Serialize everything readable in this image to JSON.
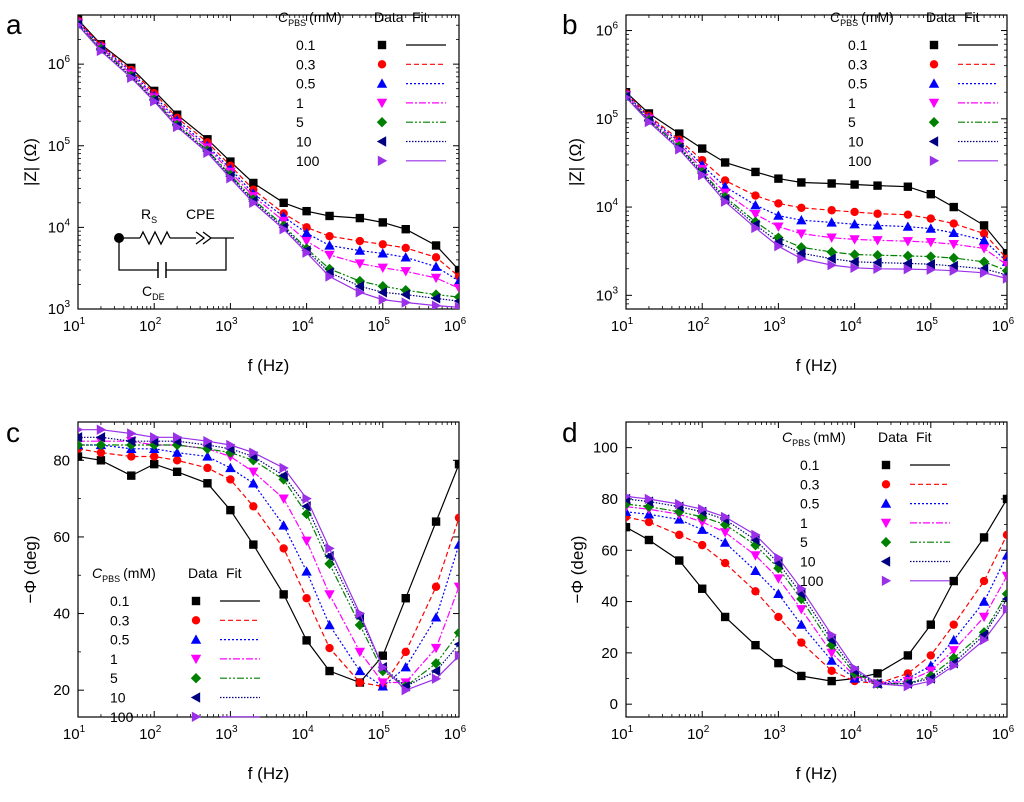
{
  "figure": {
    "legend": {
      "header_var": "C",
      "header_sub": "PBS",
      "header_unit": "(mM)",
      "data_label": "Data",
      "fit_label": "Fit"
    },
    "series_styles": [
      {
        "label": "0.1",
        "color": "#000000",
        "marker": "square",
        "dash": ""
      },
      {
        "label": "0.3",
        "color": "#ff0000",
        "marker": "circle",
        "dash": "5,3"
      },
      {
        "label": "0.5",
        "color": "#0000ff",
        "marker": "triangle-up",
        "dash": "2,2"
      },
      {
        "label": "1",
        "color": "#ff00ff",
        "marker": "triangle-down",
        "dash": "7,2,2,2"
      },
      {
        "label": "5",
        "color": "#008000",
        "marker": "diamond",
        "dash": "7,2,2,2,2,2"
      },
      {
        "label": "10",
        "color": "#000080",
        "marker": "triangle-left",
        "dash": "1.5,1.5"
      },
      {
        "label": "100",
        "color": "#9a30e8",
        "marker": "triangle-right",
        "dash": ""
      }
    ],
    "circuit": {
      "rs_main": "R",
      "rs_sub": "S",
      "cpe": "CPE",
      "cde_main": "C",
      "cde_sub": "DE"
    }
  },
  "chart_data": [
    {
      "panel": "a",
      "type": "scatter",
      "xlabel": "f (Hz)",
      "ylabel": "|Z| (Ω)",
      "xscale": "log",
      "yscale": "log",
      "xlim": [
        10,
        1000000
      ],
      "ylim": [
        1000,
        4000000
      ],
      "x_ticks": [
        1,
        2,
        3,
        4,
        5,
        6
      ],
      "y_ticks": [
        3,
        4,
        5,
        6
      ],
      "legend_position": "top-right",
      "frequencies_hz": [
        10,
        20,
        50,
        100,
        200,
        500,
        1000,
        2000,
        5000,
        10000,
        20000,
        50000,
        100000,
        200000,
        500000,
        1000000
      ],
      "series": [
        {
          "name": "0.1",
          "values": [
            3500000,
            1750000,
            900000,
            470000,
            240000,
            120000,
            64000,
            35000,
            20000,
            15800,
            13800,
            13000,
            11500,
            9500,
            6000,
            3000
          ]
        },
        {
          "name": "0.3",
          "values": [
            3400000,
            1700000,
            850000,
            440000,
            220000,
            110000,
            57000,
            29000,
            14800,
            10000,
            7800,
            6800,
            6200,
            5600,
            4300,
            2500
          ]
        },
        {
          "name": "0.5",
          "values": [
            3300000,
            1650000,
            800000,
            410000,
            205000,
            100000,
            52000,
            26000,
            13500,
            8500,
            6000,
            5200,
            4800,
            4300,
            3300,
            2200
          ]
        },
        {
          "name": "1",
          "values": [
            3200000,
            1600000,
            760000,
            390000,
            190000,
            95000,
            48000,
            24000,
            12000,
            6800,
            4600,
            3600,
            3200,
            2900,
            2400,
            1800
          ]
        },
        {
          "name": "5",
          "values": [
            3100000,
            1550000,
            720000,
            370000,
            180000,
            88000,
            44000,
            22000,
            10500,
            5500,
            3100,
            2200,
            1900,
            1700,
            1500,
            1400
          ]
        },
        {
          "name": "10",
          "values": [
            3050000,
            1500000,
            700000,
            360000,
            175000,
            85000,
            42000,
            21000,
            10000,
            5200,
            2800,
            1900,
            1600,
            1500,
            1350,
            1250
          ]
        },
        {
          "name": "100",
          "values": [
            3000000,
            1450000,
            680000,
            350000,
            170000,
            82000,
            40000,
            20000,
            9500,
            4900,
            2500,
            1600,
            1300,
            1200,
            1100,
            1050
          ]
        }
      ]
    },
    {
      "panel": "b",
      "type": "scatter",
      "xlabel": "f (Hz)",
      "ylabel": "|Z| (Ω)",
      "xscale": "log",
      "yscale": "log",
      "xlim": [
        10,
        1000000
      ],
      "ylim": [
        700,
        1500000
      ],
      "x_ticks": [
        1,
        2,
        3,
        4,
        5,
        6
      ],
      "y_ticks": [
        3,
        4,
        5,
        6
      ],
      "legend_position": "top-right",
      "frequencies_hz": [
        10,
        20,
        50,
        100,
        200,
        500,
        1000,
        2000,
        5000,
        10000,
        20000,
        50000,
        100000,
        200000,
        500000,
        1000000
      ],
      "series": [
        {
          "name": "0.1",
          "values": [
            200000,
            115000,
            68000,
            46000,
            32000,
            25000,
            21000,
            19000,
            18500,
            18000,
            17500,
            17000,
            14000,
            10000,
            6200,
            3000
          ]
        },
        {
          "name": "0.3",
          "values": [
            195000,
            108000,
            58000,
            34000,
            20000,
            13500,
            11000,
            9800,
            9200,
            8800,
            8400,
            8200,
            7400,
            6500,
            5000,
            2600
          ]
        },
        {
          "name": "0.5",
          "values": [
            190000,
            104000,
            55000,
            30000,
            17000,
            10500,
            8000,
            7100,
            6700,
            6400,
            6200,
            6000,
            5700,
            5100,
            4200,
            2400
          ]
        },
        {
          "name": "1",
          "values": [
            185000,
            100000,
            52000,
            27000,
            14500,
            8300,
            6000,
            5000,
            4500,
            4300,
            4200,
            4100,
            4000,
            3800,
            3400,
            2200
          ]
        },
        {
          "name": "5",
          "values": [
            180000,
            97000,
            49000,
            25000,
            13000,
            6800,
            4500,
            3500,
            3100,
            2900,
            2850,
            2800,
            2750,
            2650,
            2400,
            1900
          ]
        },
        {
          "name": "10",
          "values": [
            178000,
            95000,
            47000,
            24000,
            12300,
            6300,
            4000,
            3000,
            2600,
            2400,
            2350,
            2300,
            2250,
            2150,
            2000,
            1700
          ]
        },
        {
          "name": "100",
          "values": [
            175000,
            92000,
            45000,
            23000,
            11500,
            5800,
            3600,
            2600,
            2200,
            2050,
            2000,
            1980,
            1950,
            1900,
            1800,
            1550
          ]
        }
      ]
    },
    {
      "panel": "c",
      "type": "scatter",
      "xlabel": "f (Hz)",
      "ylabel": "−Φ (deg)",
      "xscale": "log",
      "yscale": "linear",
      "xlim": [
        10,
        1000000
      ],
      "ylim": [
        13,
        90
      ],
      "x_ticks": [
        1,
        2,
        3,
        4,
        5,
        6
      ],
      "y_ticks": [
        20,
        40,
        60,
        80
      ],
      "legend_position": "bottom-left",
      "frequencies_hz": [
        10,
        20,
        50,
        100,
        200,
        500,
        1000,
        2000,
        5000,
        10000,
        20000,
        50000,
        100000,
        200000,
        500000,
        1000000
      ],
      "series": [
        {
          "name": "0.1",
          "values": [
            81,
            80,
            76,
            79,
            77,
            74,
            67,
            58,
            45,
            33,
            25,
            22,
            29,
            44,
            64,
            79
          ]
        },
        {
          "name": "0.3",
          "values": [
            83,
            82,
            81,
            81,
            80,
            78,
            75,
            68,
            57,
            44,
            31,
            22,
            21,
            30,
            47,
            65
          ]
        },
        {
          "name": "0.5",
          "values": [
            84,
            84,
            83,
            83,
            82,
            81,
            78,
            74,
            63,
            51,
            37,
            25,
            21,
            26,
            39,
            58
          ]
        },
        {
          "name": "1",
          "values": [
            85,
            85,
            85,
            84,
            84,
            83,
            81,
            77,
            70,
            59,
            45,
            30,
            22,
            22,
            31,
            47
          ]
        },
        {
          "name": "5",
          "values": [
            84,
            84,
            84,
            84,
            84,
            83,
            82,
            80,
            75,
            66,
            53,
            37,
            25,
            21,
            27,
            35
          ]
        },
        {
          "name": "10",
          "values": [
            86,
            86,
            85,
            85,
            85,
            84,
            83,
            81,
            76,
            68,
            55,
            39,
            26,
            21,
            25,
            32
          ]
        },
        {
          "name": "100",
          "values": [
            88,
            88,
            87,
            86,
            86,
            85,
            84,
            82,
            78,
            70,
            57,
            40,
            26,
            20,
            23,
            29
          ]
        }
      ]
    },
    {
      "panel": "d",
      "type": "scatter",
      "xlabel": "f (Hz)",
      "ylabel": "−Φ (deg)",
      "xscale": "log",
      "yscale": "linear",
      "xlim": [
        10,
        1000000
      ],
      "ylim": [
        -5,
        110
      ],
      "x_ticks": [
        1,
        2,
        3,
        4,
        5,
        6
      ],
      "y_ticks": [
        0,
        20,
        40,
        60,
        80,
        100
      ],
      "legend_position": "top-right",
      "frequencies_hz": [
        10,
        20,
        50,
        100,
        200,
        500,
        1000,
        2000,
        5000,
        10000,
        20000,
        50000,
        100000,
        200000,
        500000,
        1000000
      ],
      "series": [
        {
          "name": "0.1",
          "values": [
            69,
            64,
            56,
            45,
            34,
            23,
            16,
            11,
            9,
            10,
            12,
            19,
            31,
            48,
            65,
            80
          ]
        },
        {
          "name": "0.3",
          "values": [
            73,
            71,
            66,
            62,
            55,
            44,
            34,
            24,
            13,
            9,
            8,
            12,
            19,
            31,
            48,
            66
          ]
        },
        {
          "name": "0.5",
          "values": [
            75,
            74,
            72,
            68,
            63,
            52,
            43,
            31,
            17,
            10,
            8,
            10,
            15,
            25,
            40,
            58
          ]
        },
        {
          "name": "1",
          "values": [
            77,
            76,
            74,
            71,
            67,
            58,
            49,
            37,
            20,
            11,
            8,
            9,
            13,
            21,
            34,
            50
          ]
        },
        {
          "name": "5",
          "values": [
            78,
            77,
            75,
            73,
            70,
            62,
            53,
            41,
            23,
            12,
            8,
            8,
            11,
            18,
            28,
            43
          ]
        },
        {
          "name": "10",
          "values": [
            80,
            79,
            77,
            75,
            72,
            64,
            55,
            43,
            25,
            13,
            8,
            8,
            10,
            16,
            27,
            41
          ]
        },
        {
          "name": "100",
          "values": [
            81,
            80,
            78,
            76,
            73,
            66,
            57,
            45,
            27,
            14,
            8,
            7,
            9,
            15,
            25,
            37
          ]
        }
      ]
    }
  ]
}
